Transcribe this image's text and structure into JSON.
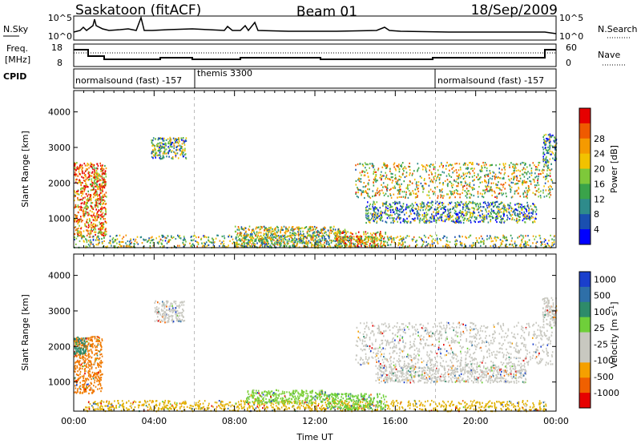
{
  "header": {
    "station": "Saskatoon (fitACF)",
    "beam": "Beam 01",
    "date": "18/Sep/2009"
  },
  "ancillary": {
    "nsky_label": "N.Sky",
    "nsky_ticks": [
      "10^5",
      "10^0"
    ],
    "nsearch_label": "N.Search",
    "freq_label": "Freq.",
    "freq_unit": "[MHz]",
    "freq_ticks": [
      "18",
      "8"
    ],
    "nave_label": "Nave",
    "nave_ticks": [
      "60",
      "0"
    ],
    "cpid_label": "CPID",
    "cpid_segments": [
      {
        "label": "normalsound (fast) -157",
        "start_hour": 0
      },
      {
        "label": "themis 3300",
        "start_hour": 6
      },
      {
        "label": "normalsound (fast) -157",
        "start_hour": 18
      }
    ]
  },
  "chart_data": [
    {
      "type": "heatmap",
      "panel": "power",
      "ylabel": "Slant Range [km]",
      "yticks": [
        "1000",
        "2000",
        "3000",
        "4000"
      ],
      "ylim": [
        180,
        4600
      ],
      "xlim": [
        0,
        24
      ],
      "colorbar_label": "Power [dB]",
      "colorbar_ticks": [
        "4",
        "8",
        "12",
        "16",
        "20",
        "24",
        "28"
      ],
      "colorbar_colors": [
        "#0000ff",
        "#1a4fb0",
        "#2e8b8b",
        "#3aa34a",
        "#7ec83a",
        "#f2c200",
        "#f59a00",
        "#ef5a00",
        "#e60000"
      ],
      "regions": [
        {
          "t0": 0.0,
          "t1": 1.6,
          "r0": 500,
          "r1": 2600,
          "level": 0.75
        },
        {
          "t0": 0.0,
          "t1": 23.9,
          "r0": 200,
          "r1": 550,
          "level": 0.45
        },
        {
          "t0": 8.0,
          "t1": 13.5,
          "r0": 220,
          "r1": 800,
          "level": 0.5
        },
        {
          "t0": 13.0,
          "t1": 15.5,
          "r0": 220,
          "r1": 650,
          "level": 0.7
        },
        {
          "t0": 14.0,
          "t1": 23.8,
          "r0": 1600,
          "r1": 2600,
          "level": 0.55
        },
        {
          "t0": 14.5,
          "t1": 23.0,
          "r0": 900,
          "r1": 1500,
          "level": 0.35
        },
        {
          "t0": 3.8,
          "t1": 5.6,
          "r0": 2700,
          "r1": 3300,
          "level": 0.4
        },
        {
          "t0": 23.3,
          "t1": 24.0,
          "r0": 2600,
          "r1": 3400,
          "level": 0.3
        }
      ]
    },
    {
      "type": "heatmap",
      "panel": "velocity",
      "ylabel": "Slant Range [km]",
      "yticks": [
        "1000",
        "2000",
        "3000",
        "4000"
      ],
      "ylim": [
        180,
        4600
      ],
      "xlim": [
        0,
        24
      ],
      "xlabel": "Time UT",
      "xticks": [
        "00:00",
        "04:00",
        "08:00",
        "12:00",
        "16:00",
        "20:00",
        "00:00"
      ],
      "colorbar_label": "Velocity [m s",
      "colorbar_label_sup": "-1",
      "colorbar_label_end": "]",
      "colorbar_ticks": [
        "1000",
        "500",
        "100",
        "25",
        "-25",
        "-100",
        "-500",
        "-1000"
      ],
      "colorbar_colors": [
        "#1a3fcc",
        "#2e6fa8",
        "#2e8b6a",
        "#6fcf3a",
        "#c8c8c0",
        "#c8c8c0",
        "#f5a000",
        "#f06000",
        "#e60000"
      ],
      "regions": [
        {
          "t0": 0.0,
          "t1": 1.4,
          "r0": 700,
          "r1": 2300,
          "color": "#f07a00"
        },
        {
          "t0": 0.0,
          "t1": 0.6,
          "r0": 1800,
          "r1": 2300,
          "color": "#2e8b6a"
        },
        {
          "t0": 0.5,
          "t1": 23.5,
          "r0": 200,
          "r1": 500,
          "color": "#e0b000"
        },
        {
          "t0": 8.5,
          "t1": 12.5,
          "r0": 400,
          "r1": 800,
          "color": "#7ed03a"
        },
        {
          "t0": 12.5,
          "t1": 15.5,
          "r0": 250,
          "r1": 700,
          "color": "#6fcf3a"
        },
        {
          "t0": 14.0,
          "t1": 23.8,
          "r0": 1500,
          "r1": 2700,
          "color": "#c8c8c0"
        },
        {
          "t0": 15.0,
          "t1": 22.5,
          "r0": 1000,
          "r1": 1500,
          "color": "#c8c8c0"
        },
        {
          "t0": 4.0,
          "t1": 5.5,
          "r0": 2700,
          "r1": 3300,
          "color": "#c8c8c0"
        },
        {
          "t0": 23.3,
          "t1": 24.0,
          "r0": 2600,
          "r1": 3400,
          "color": "#c8c8c0"
        }
      ]
    }
  ]
}
